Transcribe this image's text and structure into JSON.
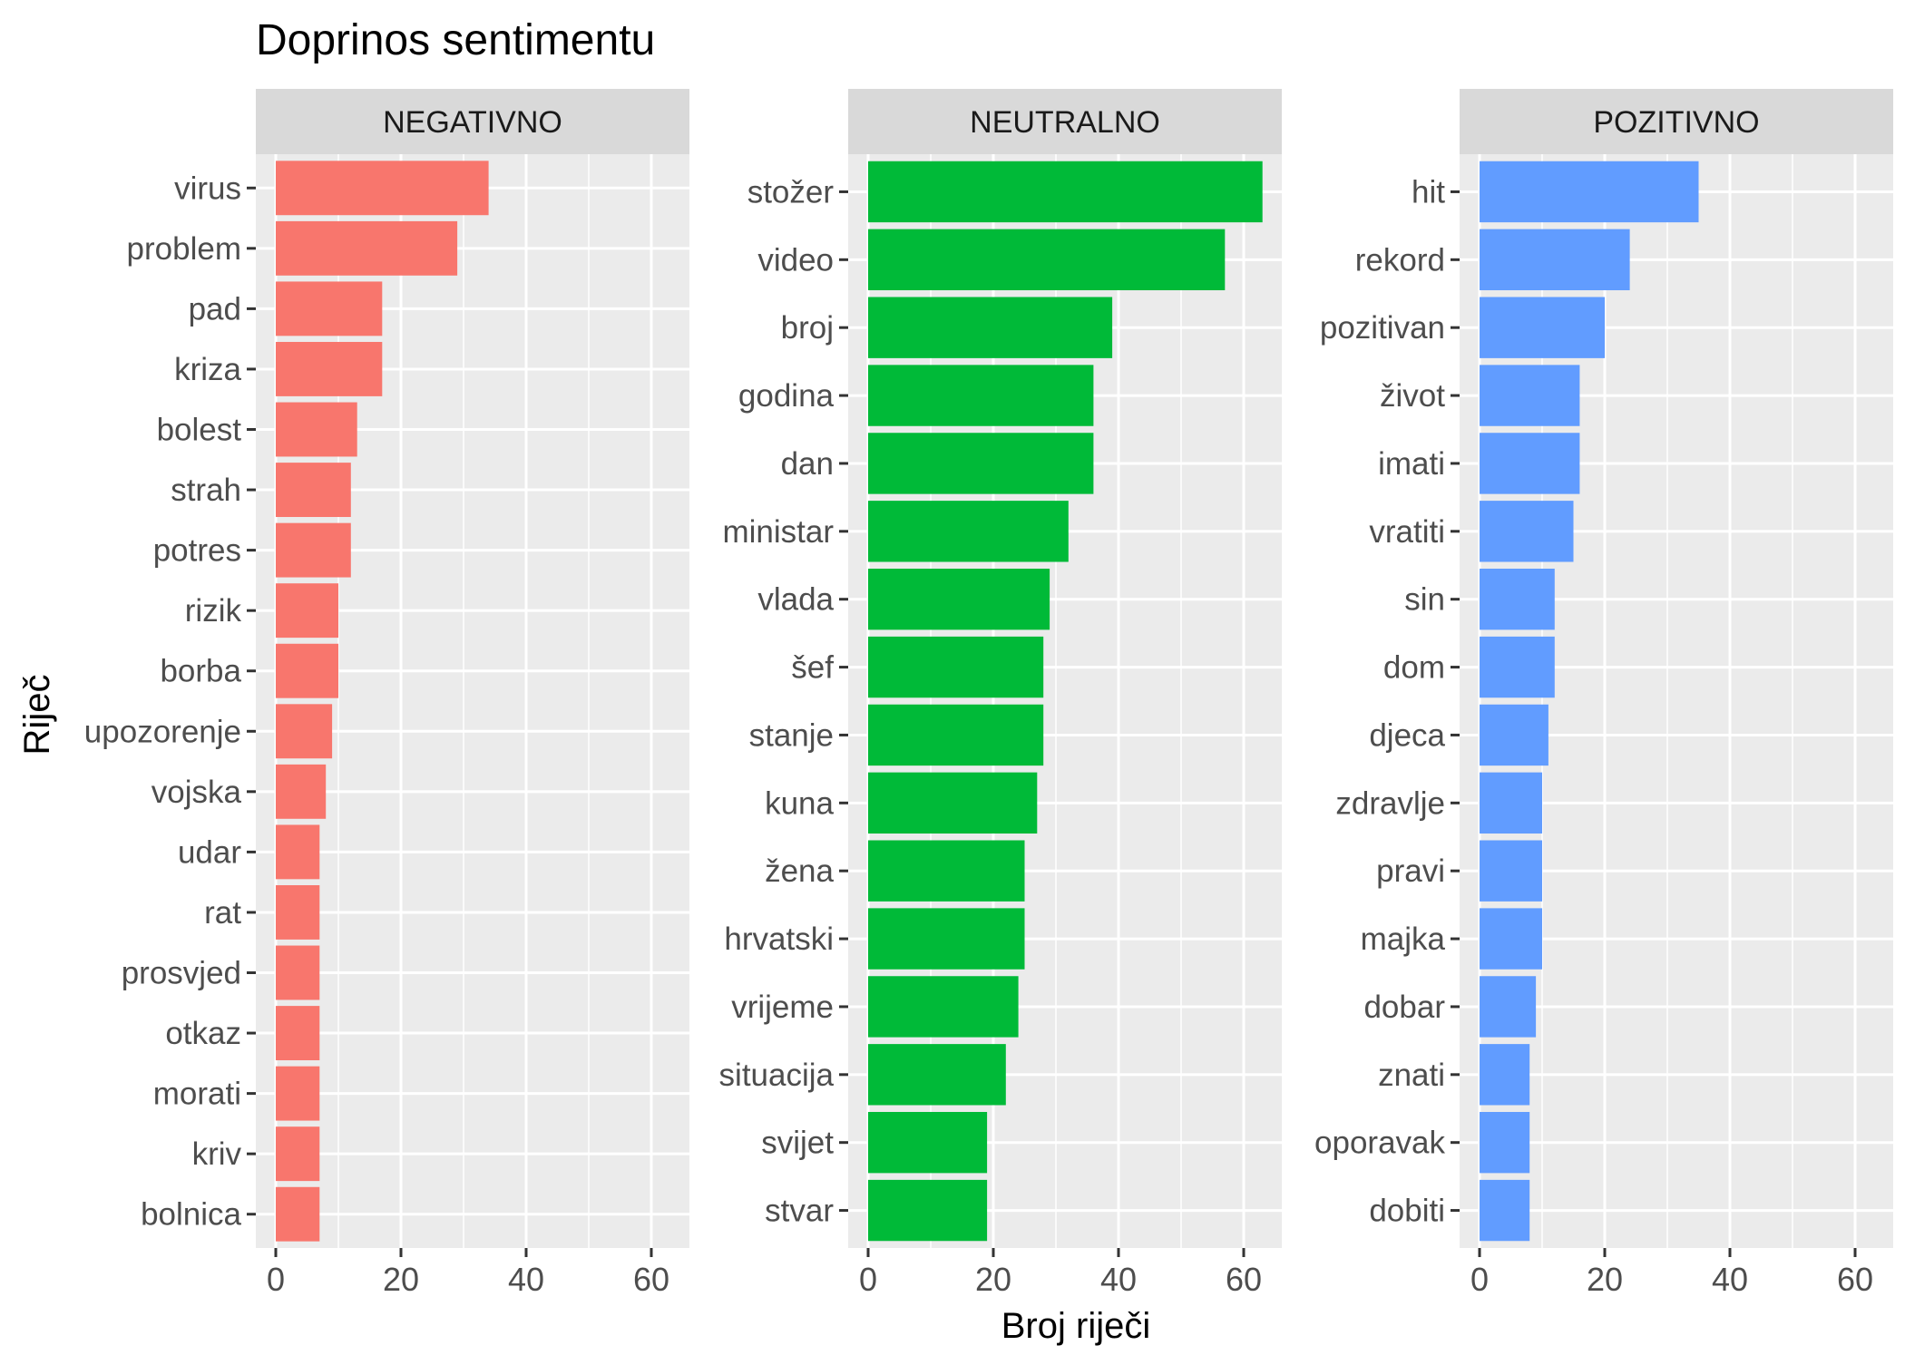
{
  "chart_data": {
    "type": "bar",
    "orientation": "horizontal",
    "title": "Doprinos sentimentu",
    "xlabel": "Broj riječi",
    "ylabel": "Riječ",
    "xlim": [
      0,
      65
    ],
    "x_ticks": [
      0,
      20,
      40,
      60
    ],
    "grid": true,
    "legend": "none",
    "facets": [
      {
        "name": "NEGATIVNO",
        "color": "#F8766D",
        "categories": [
          "virus",
          "problem",
          "pad",
          "kriza",
          "bolest",
          "strah",
          "potres",
          "rizik",
          "borba",
          "upozorenje",
          "vojska",
          "udar",
          "rat",
          "prosvjed",
          "otkaz",
          "morati",
          "kriv",
          "bolnica"
        ],
        "values": [
          34,
          29,
          17,
          17,
          13,
          12,
          12,
          10,
          10,
          9,
          8,
          7,
          7,
          7,
          7,
          7,
          7,
          7
        ]
      },
      {
        "name": "NEUTRALNO",
        "color": "#00BA38",
        "categories": [
          "stožer",
          "video",
          "broj",
          "godina",
          "dan",
          "ministar",
          "vlada",
          "šef",
          "stanje",
          "kuna",
          "žena",
          "hrvatski",
          "vrijeme",
          "situacija",
          "svijet",
          "stvar"
        ],
        "values": [
          63,
          57,
          39,
          36,
          36,
          32,
          29,
          28,
          28,
          27,
          25,
          25,
          24,
          22,
          19,
          19
        ]
      },
      {
        "name": "POZITIVNO",
        "color": "#619CFF",
        "categories": [
          "hit",
          "rekord",
          "pozitivan",
          "život",
          "imati",
          "vratiti",
          "sin",
          "dom",
          "djeca",
          "zdravlje",
          "pravi",
          "majka",
          "dobar",
          "znati",
          "oporavak",
          "dobiti"
        ],
        "values": [
          35,
          24,
          20,
          16,
          16,
          15,
          12,
          12,
          11,
          10,
          10,
          10,
          9,
          8,
          8,
          8
        ]
      }
    ]
  }
}
